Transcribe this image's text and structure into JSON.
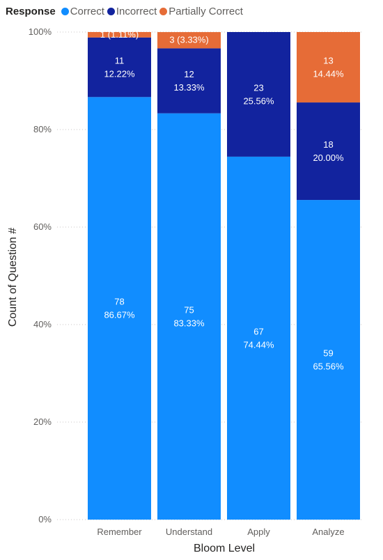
{
  "chart_data": {
    "type": "bar",
    "stacked": "100%",
    "legend": {
      "title": "Response",
      "position": "top-left",
      "entries": [
        "Correct",
        "Incorrect",
        "Partially Correct"
      ]
    },
    "categories": [
      "Remember",
      "Understand",
      "Apply",
      "Analyze"
    ],
    "series": [
      {
        "name": "Correct",
        "color": "#118DFF",
        "values": [
          78,
          75,
          67,
          59
        ],
        "percent": [
          86.67,
          83.33,
          74.44,
          65.56
        ],
        "labels": [
          [
            "78",
            "86.67%"
          ],
          [
            "75",
            "83.33%"
          ],
          [
            "67",
            "74.44%"
          ],
          [
            "59",
            "65.56%"
          ]
        ]
      },
      {
        "name": "Incorrect",
        "color": "#12239E",
        "values": [
          11,
          12,
          23,
          18
        ],
        "percent": [
          12.22,
          13.33,
          25.56,
          20.0
        ],
        "labels": [
          [
            "11",
            "12.22%"
          ],
          [
            "12",
            "13.33%"
          ],
          [
            "23",
            "25.56%"
          ],
          [
            "18",
            "20.00%"
          ]
        ]
      },
      {
        "name": "Partially Correct",
        "color": "#E66C37",
        "values": [
          1,
          3,
          0,
          13
        ],
        "percent": [
          1.11,
          3.33,
          0,
          14.44
        ],
        "labels": [
          [
            "1 (1.11%)"
          ],
          [
            "3 (3.33%)"
          ],
          [],
          [
            "13",
            "14.44%"
          ]
        ]
      }
    ],
    "xlabel": "Bloom Level",
    "ylabel": "Count of Question #",
    "ylim": [
      0,
      100
    ],
    "yticks": [
      "0%",
      "20%",
      "40%",
      "60%",
      "80%",
      "100%"
    ],
    "grid": true
  }
}
